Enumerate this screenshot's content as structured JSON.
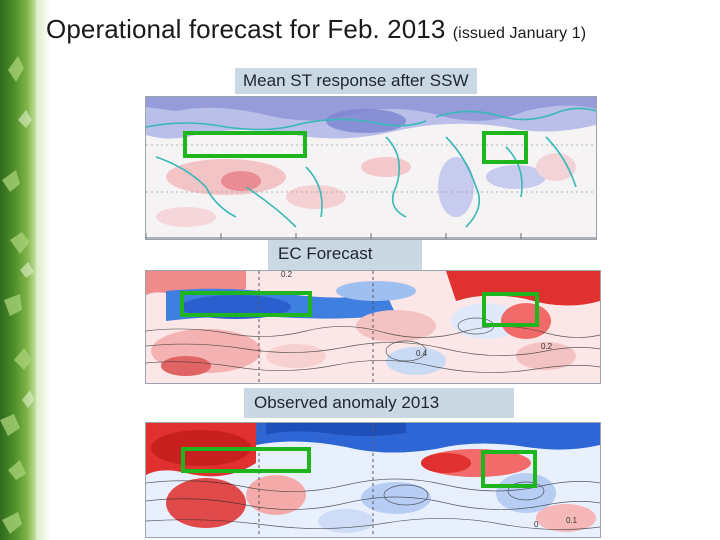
{
  "slide": {
    "title_main": "Operational forecast for Feb. 2013",
    "title_sub": "(issued January 1)"
  },
  "panels": [
    {
      "label": "Mean ST response after SSW"
    },
    {
      "label": "EC Forecast",
      "contour_labels": [
        "0.2",
        "0.4",
        "0.2"
      ]
    },
    {
      "label": "Observed anomaly 2013",
      "contour_labels": [
        "0",
        "0.1"
      ]
    }
  ],
  "colors": {
    "highlight_box": "#1fb51f",
    "warm": "#e0302f",
    "cool": "#3f7fdf",
    "coast": "#38b8b8"
  }
}
